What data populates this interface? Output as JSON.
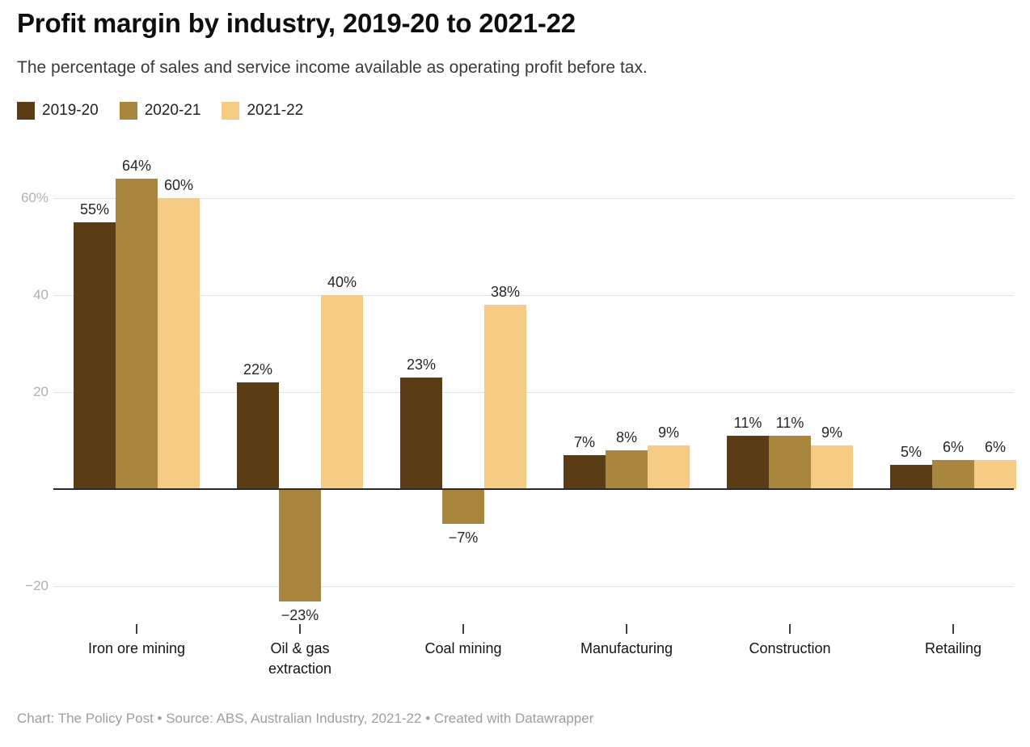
{
  "header": {
    "title": "Profit margin by industry, 2019-20 to 2021-22",
    "subtitle": "The percentage of sales and service income available as operating profit before tax."
  },
  "footer": {
    "text": "Chart: The Policy Post • Source: ABS, Australian Industry, 2021-22 • Created with Datawrapper"
  },
  "chart_data": {
    "type": "bar",
    "title": "Profit margin by industry, 2019-20 to 2021-22",
    "subtitle": "The percentage of sales and service income available as operating profit before tax.",
    "categories": [
      "Iron ore mining",
      "Oil & gas\nextraction",
      "Coal mining",
      "Manufacturing",
      "Construction",
      "Retailing"
    ],
    "series": [
      {
        "name": "2019-20",
        "color": "#5a3d16",
        "values": [
          55,
          22,
          23,
          7,
          11,
          5
        ]
      },
      {
        "name": "2020-21",
        "color": "#a8863e",
        "values": [
          64,
          -23,
          -7,
          8,
          11,
          6
        ]
      },
      {
        "name": "2021-22",
        "color": "#f6cc85",
        "values": [
          60,
          40,
          38,
          9,
          9,
          6
        ]
      }
    ],
    "value_label_suffix": "%",
    "minus_sign": "−",
    "y_axis_ticks": [
      {
        "value": 60,
        "label": "60%"
      },
      {
        "value": 40,
        "label": "40"
      },
      {
        "value": 20,
        "label": "20"
      },
      {
        "value": -20,
        "label": "−20"
      }
    ],
    "ylim": [
      -30,
      70
    ],
    "grid": true,
    "legend_position": "top-left",
    "xlabel": "",
    "ylabel": ""
  },
  "colors": {
    "background": "#ffffff",
    "grid": "#e3e3e3",
    "zero_line": "#2a2a2a",
    "axis_label": "#b0b0b0",
    "tick_mark": "#3f3f3f",
    "value_label": "#262626",
    "category_label": "#141414",
    "footer_text": "#9e9e9e"
  }
}
